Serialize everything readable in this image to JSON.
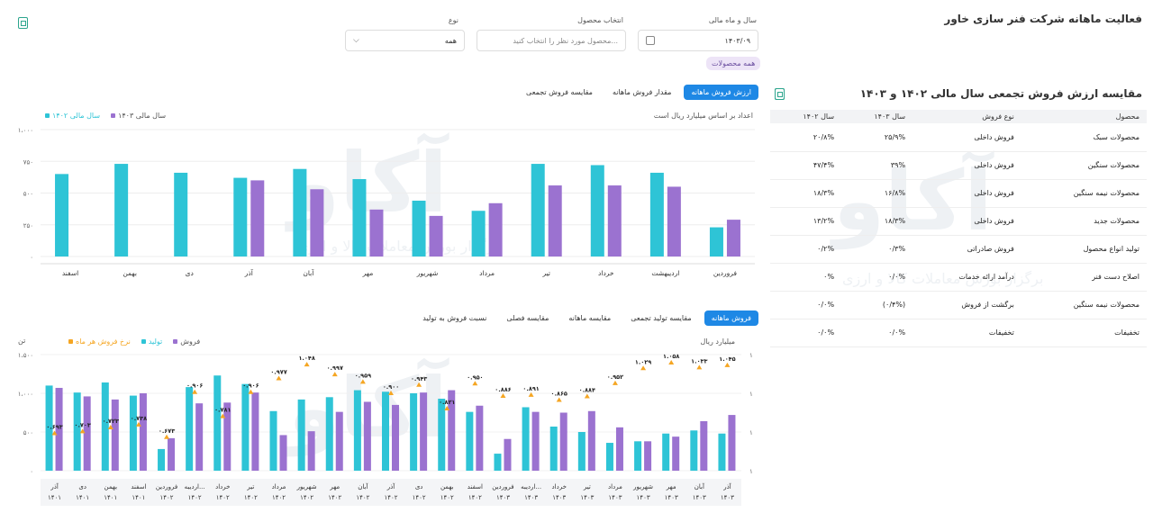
{
  "header": {
    "title": "فعالیت ماهانه شرکت فنر سازی خاور"
  },
  "filters": {
    "year_label": "سال و ماه مالی",
    "year_value": "۱۴۰۳/۰۹",
    "product_label": "انتخاب محصول",
    "product_placeholder": "محصول مورد نظر را انتخاب کنید...",
    "type_label": "نوع",
    "type_value": "همه",
    "chip": "همه محصولات"
  },
  "watermark": {
    "brand": "آکاو",
    "sub": "برگزار بورس معاملات کالا و ارزی"
  },
  "top_chart": {
    "tabs": [
      "ارزش فروش ماهانه",
      "مقدار فروش ماهانه",
      "مقایسه فروش تجمعی"
    ],
    "legend": [
      "سال مالی ۱۴۰۳",
      "سال مالی ۱۴۰۲"
    ],
    "note": "اعداد بر اساس میلیارد ریال است"
  },
  "bottom_chart": {
    "tabs": [
      "فروش ماهانه",
      "مقایسه تولید تجمعی",
      "مقایسه ماهانه",
      "مقایسه فصلی",
      "نسبت فروش به تولید"
    ],
    "legend": [
      "فروش",
      "تولید",
      "نرخ فروش هر ماه"
    ],
    "left_unit": "تن",
    "right_unit": "میلیارد ریال"
  },
  "table": {
    "title": "مقایسه ارزش فروش تجمعی سال مالی ۱۴۰۲ و ۱۴۰۳",
    "headers": [
      "محصول",
      "نوع فروش",
      "سال ۱۴۰۳",
      "سال ۱۴۰۲"
    ],
    "rows": [
      [
        "محصولات سبک",
        "فروش داخلی",
        "۲۵/۹%",
        "۲۰/۸%"
      ],
      [
        "محصولات سنگین",
        "فروش داخلی",
        "۳۹%",
        "۴۷/۴%"
      ],
      [
        "محصولات نیمه سنگین",
        "فروش داخلی",
        "۱۶/۸%",
        "۱۸/۳%"
      ],
      [
        "محصولات جدید",
        "فروش داخلی",
        "۱۸/۳%",
        "۱۳/۲%"
      ],
      [
        "تولید انواع محصول",
        "فروش صادراتی",
        "۰/۳%",
        "۰/۲%"
      ],
      [
        "اصلاح دست فنر",
        "درآمد ارائه خدمات",
        "۰/۰%",
        "۰%"
      ],
      [
        "محصولات نیمه سنگین",
        "برگشت از فروش",
        "(۰/۴%)",
        "۰/۰%"
      ],
      [
        "تخفیفات",
        "تخفیفات",
        "۰/۰%",
        "۰/۰%"
      ]
    ]
  },
  "chart_data": [
    {
      "type": "bar",
      "title": "",
      "categories": [
        "فروردین",
        "اردیبهشت",
        "خرداد",
        "تیر",
        "مرداد",
        "شهریور",
        "مهر",
        "آبان",
        "آذر",
        "دی",
        "بهمن",
        "اسفند"
      ],
      "series": [
        {
          "name": "سال مالی ۱۴۰۲",
          "color": "#2ec4d6",
          "values": [
            230,
            660,
            720,
            730,
            360,
            440,
            610,
            690,
            620,
            660,
            730,
            650
          ]
        },
        {
          "name": "سال مالی ۱۴۰۳",
          "color": "#9b72d0",
          "values": [
            290,
            550,
            560,
            560,
            420,
            320,
            370,
            530,
            600,
            null,
            null,
            null
          ]
        }
      ],
      "ylim": [
        0,
        1000
      ],
      "yticks": [
        "۰",
        "۲۵۰",
        "۵۰۰",
        "۷۵۰",
        "۱،۰۰۰"
      ]
    },
    {
      "type": "bar",
      "title": "",
      "categories": [
        "آذر ۱۴۰۱",
        "دی ۱۴۰۱",
        "بهمن ۱۴۰۱",
        "اسفند ۱۴۰۱",
        "فروردین ۱۴۰۲",
        "اردیبه... ۱۴۰۲",
        "خرداد ۱۴۰۲",
        "تیر ۱۴۰۲",
        "مرداد ۱۴۰۲",
        "شهریور ۱۴۰۲",
        "مهر ۱۴۰۲",
        "آبان ۱۴۰۲",
        "آذر ۱۴۰۲",
        "دی ۱۴۰۲",
        "بهمن ۱۴۰۲",
        "اسفند ۱۴۰۲",
        "فروردین ۱۴۰۳",
        "اردیبه... ۱۴۰۳",
        "خرداد ۱۴۰۳",
        "تیر ۱۴۰۳",
        "مرداد ۱۴۰۳",
        "شهریور ۱۴۰۳",
        "مهر ۱۴۰۳",
        "آبان ۱۴۰۳",
        "آذر ۱۴۰۳"
      ],
      "series": [
        {
          "name": "تولید",
          "color": "#2ec4d6",
          "values": [
            1100,
            1010,
            1140,
            970,
            280,
            1080,
            1230,
            1120,
            770,
            920,
            950,
            1040,
            1020,
            1000,
            930,
            760,
            220,
            820,
            570,
            500,
            360,
            380,
            480,
            520,
            480
          ]
        },
        {
          "name": "فروش",
          "color": "#9b72d0",
          "values": [
            1070,
            960,
            920,
            1000,
            420,
            870,
            880,
            1010,
            460,
            510,
            760,
            890,
            850,
            1010,
            1040,
            840,
            410,
            760,
            750,
            770,
            560,
            380,
            440,
            640,
            720
          ]
        },
        {
          "name": "نرخ فروش هر ماه",
          "color": "#f5a623",
          "labels": [
            "۰.۶۹۳",
            "۰.۷۰۳",
            "۰.۷۲۳",
            "۰.۷۳۸",
            "۰.۶۷۳",
            "۰.۹۰۶",
            "۰.۷۸۱",
            "۰.۹۰۶",
            "۰.۹۷۷",
            "۱.۰۴۸",
            "۰.۹۹۷",
            "۰.۹۵۹",
            "۰.۹۰۰",
            "۰.۹۴۳",
            "۰.۸۲۱",
            "۰.۹۵۰",
            "۰.۸۸۶",
            "۰.۸۹۱",
            "۰.۸۶۵",
            "۰.۸۸۴",
            "۰.۹۵۲",
            "۱.۰۲۹",
            "۱.۰۵۸",
            "۱.۰۳۳",
            "۱.۰۴۵"
          ],
          "values": [
            0.693,
            0.703,
            0.723,
            0.738,
            0.673,
            0.906,
            0.781,
            0.906,
            0.977,
            1.048,
            0.997,
            0.959,
            0.9,
            0.943,
            0.821,
            0.95,
            0.886,
            0.891,
            0.865,
            0.884,
            0.952,
            1.029,
            1.058,
            1.033,
            1.045
          ]
        }
      ],
      "ylim": [
        0,
        1500
      ],
      "yticks": [
        "۰",
        "۵۰۰",
        "۱،۰۰۰",
        "۱،۵۰۰"
      ],
      "right_ticks": [
        "۱",
        "۱",
        "۱",
        "۱"
      ]
    }
  ]
}
